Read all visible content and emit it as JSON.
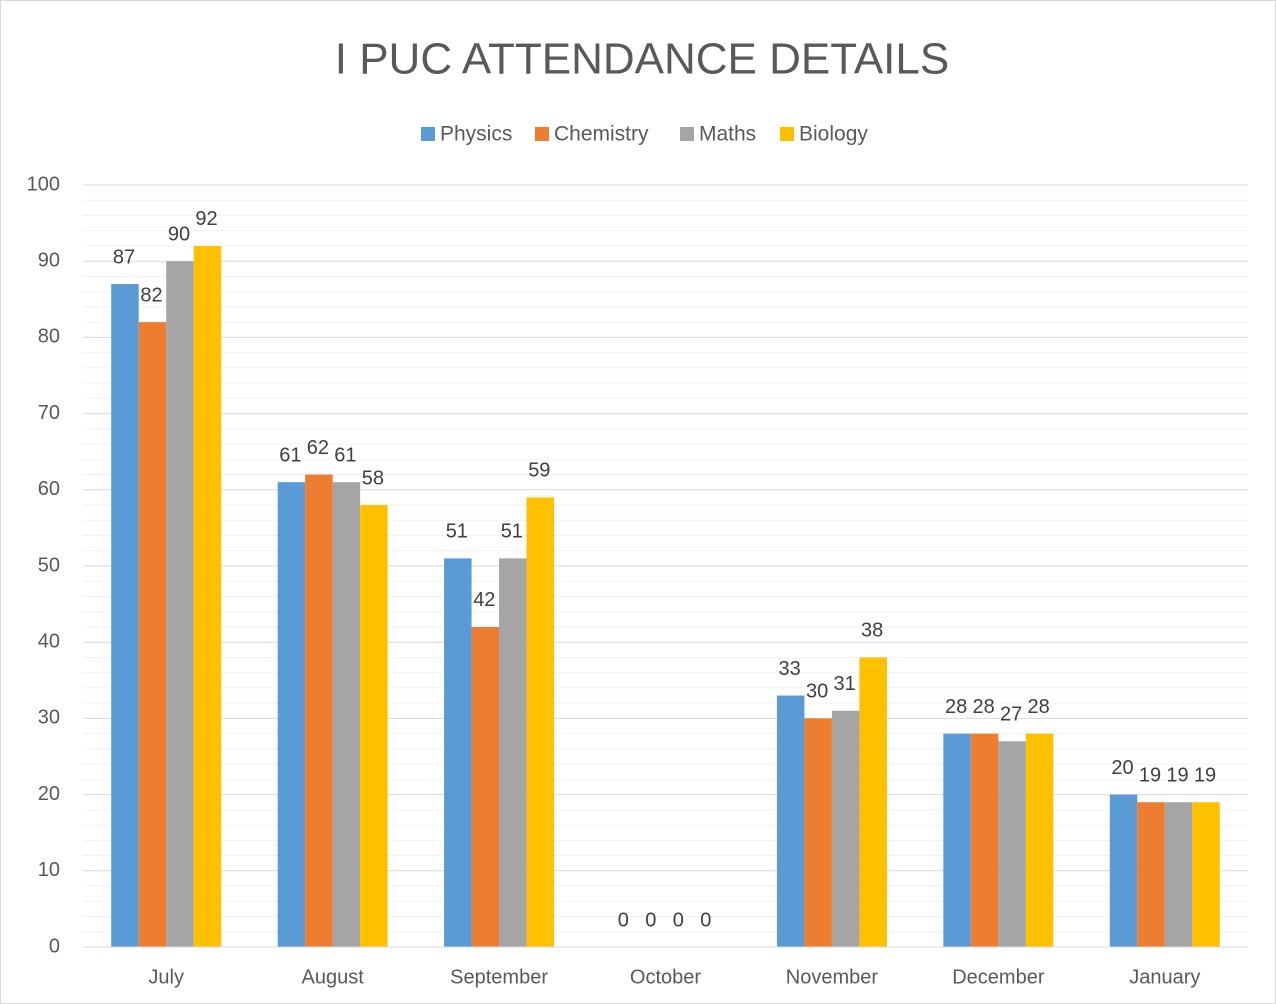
{
  "chart_data": {
    "type": "bar",
    "title": "I PUC ATTENDANCE DETAILS",
    "categories": [
      "July",
      "August",
      "September",
      "October",
      "November",
      "December",
      "January"
    ],
    "series": [
      {
        "name": "Physics",
        "color": "#5b9bd5",
        "values": [
          87,
          61,
          51,
          0,
          33,
          28,
          20
        ]
      },
      {
        "name": "Chemistry",
        "color": "#ed7d31",
        "values": [
          82,
          62,
          42,
          0,
          30,
          28,
          19
        ]
      },
      {
        "name": "Maths",
        "color": "#a5a5a5",
        "values": [
          90,
          61,
          51,
          0,
          31,
          27,
          19
        ]
      },
      {
        "name": "Biology",
        "color": "#ffc000",
        "values": [
          92,
          58,
          59,
          0,
          38,
          28,
          19
        ]
      }
    ],
    "ylim": [
      0,
      100
    ],
    "yticks": [
      0,
      10,
      20,
      30,
      40,
      50,
      60,
      70,
      80,
      90,
      100
    ],
    "grid": true,
    "minor_grid_divisions": 5,
    "legend": "top"
  }
}
